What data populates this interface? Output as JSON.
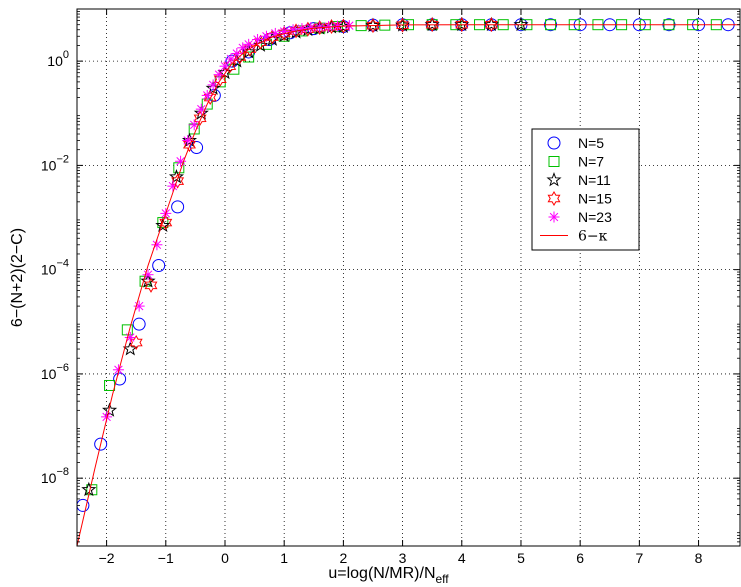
{
  "chart_data": {
    "type": "scatter",
    "title": "",
    "xlabel": "u=log(N/MR)/N",
    "xlabel_sub": "eff",
    "ylabel": "6−(N+2)(2−C)",
    "xlim": [
      -2.5,
      8.7
    ],
    "ylim": [
      5e-10,
      10.0
    ],
    "yscale": "log",
    "grid": true,
    "legend_position": "right",
    "x_ticks": [
      -2,
      -1,
      0,
      1,
      2,
      3,
      4,
      5,
      6,
      7,
      8
    ],
    "x_tick_labels": [
      "−2",
      "−1",
      "0",
      "1",
      "2",
      "3",
      "4",
      "5",
      "6",
      "7",
      "8"
    ],
    "y_ticks": [
      1e-08,
      1e-06,
      0.0001,
      0.01,
      1
    ],
    "y_tick_base": "10",
    "y_tick_exponents": [
      "−8",
      "−6",
      "−4",
      "−2",
      "0"
    ],
    "series": [
      {
        "name": "N=5",
        "marker": "circle",
        "color": "#0000ff",
        "x": [
          -2.4,
          -2.1,
          -1.78,
          -1.45,
          -1.12,
          -0.8,
          -0.48,
          -0.18,
          0.12,
          0.4,
          0.75,
          1.1,
          1.5,
          2.0,
          2.5,
          3.0,
          3.5,
          4.0,
          4.5,
          5.0,
          5.5,
          6.0,
          6.5,
          7.0,
          7.5,
          8.0,
          8.5
        ],
        "y": [
          3e-09,
          4.5e-08,
          8e-07,
          9e-06,
          0.00012,
          0.0016,
          0.022,
          0.22,
          1.0,
          1.5,
          2.6,
          3.5,
          4.2,
          4.6,
          4.9,
          5.0,
          5.0,
          5.0,
          5.0,
          5.0,
          5.0,
          5.0,
          5.0,
          5.0,
          5.0,
          5.0,
          5.0
        ]
      },
      {
        "name": "N=7",
        "marker": "square",
        "color": "#00c000",
        "x": [
          -2.25,
          -1.95,
          -1.65,
          -1.35,
          -1.05,
          -0.78,
          -0.52,
          -0.3,
          -0.08,
          0.15,
          0.4,
          0.7,
          1.0,
          1.3,
          1.6,
          1.9,
          2.3,
          2.7,
          3.1,
          3.5,
          3.9,
          4.3,
          4.7,
          5.1,
          5.5,
          5.9,
          6.3,
          6.7,
          7.1,
          7.5,
          7.9,
          8.3
        ],
        "y": [
          6e-09,
          6e-07,
          7e-06,
          6e-05,
          0.0008,
          0.009,
          0.05,
          0.15,
          0.4,
          0.7,
          1.2,
          2.1,
          3.0,
          3.8,
          4.3,
          4.6,
          4.8,
          4.9,
          5.0,
          5.0,
          5.0,
          5.0,
          5.0,
          5.0,
          5.0,
          5.0,
          5.0,
          5.0,
          5.0,
          5.0,
          5.0,
          5.0
        ]
      },
      {
        "name": "N=11",
        "marker": "star5",
        "color": "#000000",
        "x": [
          -2.3,
          -1.95,
          -1.6,
          -1.3,
          -1.05,
          -0.82,
          -0.6,
          -0.4,
          -0.2,
          0.0,
          0.2,
          0.4,
          0.6,
          0.8,
          1.0,
          1.2,
          1.4,
          1.6,
          1.8,
          2.0,
          2.5,
          3.0,
          3.5,
          4.0,
          4.5,
          5.0
        ],
        "y": [
          6e-09,
          2e-07,
          3e-06,
          6e-05,
          0.0007,
          0.006,
          0.03,
          0.1,
          0.3,
          0.6,
          1.0,
          1.5,
          2.0,
          2.6,
          3.1,
          3.6,
          4.0,
          4.3,
          4.5,
          4.6,
          4.8,
          4.9,
          5.0,
          5.0,
          5.0,
          5.0
        ]
      },
      {
        "name": "N=15",
        "marker": "hexagram",
        "color": "#ff0000",
        "x": [
          -1.5,
          -1.25,
          -1.0,
          -0.8,
          -0.6,
          -0.42,
          -0.25,
          -0.08,
          0.08,
          0.25,
          0.42,
          0.6,
          0.8,
          1.0,
          1.2,
          1.4,
          1.6,
          1.8,
          2.0,
          2.5,
          3.0,
          3.5,
          4.0,
          4.5
        ],
        "y": [
          4e-06,
          5e-05,
          0.0008,
          0.005,
          0.025,
          0.08,
          0.2,
          0.45,
          0.8,
          1.2,
          1.7,
          2.3,
          2.9,
          3.4,
          3.8,
          4.1,
          4.4,
          4.6,
          4.7,
          4.8,
          4.9,
          5.0,
          5.0,
          5.0
        ]
      },
      {
        "name": "N=23",
        "marker": "asterisk",
        "color": "#ff00ff",
        "x": [
          -2.0,
          -1.8,
          -1.6,
          -1.45,
          -1.3,
          -1.15,
          -1.0,
          -0.88,
          -0.75,
          -0.63,
          -0.52,
          -0.4,
          -0.3,
          -0.2,
          -0.1,
          0.0,
          0.1,
          0.2,
          0.3,
          0.4,
          0.55,
          0.7,
          0.85,
          1.0,
          1.15,
          1.3,
          1.45,
          1.6,
          1.75,
          1.9,
          2.1
        ],
        "y": [
          1.5e-07,
          1.2e-06,
          5e-06,
          2e-05,
          8e-05,
          0.0003,
          0.0012,
          0.004,
          0.012,
          0.03,
          0.06,
          0.12,
          0.22,
          0.35,
          0.55,
          0.8,
          1.1,
          1.4,
          1.8,
          2.1,
          2.6,
          3.0,
          3.4,
          3.7,
          4.0,
          4.2,
          4.4,
          4.5,
          4.6,
          4.7,
          4.8
        ]
      },
      {
        "name": "6−κ",
        "marker": "line",
        "color": "#ff0000",
        "x": [
          -2.5,
          -2.2,
          -1.9,
          -1.6,
          -1.3,
          -1.0,
          -0.7,
          -0.5,
          -0.3,
          -0.1,
          0.1,
          0.3,
          0.5,
          0.8,
          1.1,
          1.5,
          2.0,
          3.0,
          4.0,
          6.0,
          8.7
        ],
        "y": [
          5e-10,
          1.5e-08,
          4e-07,
          8e-06,
          0.00012,
          0.0012,
          0.012,
          0.045,
          0.15,
          0.4,
          0.85,
          1.4,
          2.0,
          2.9,
          3.6,
          4.3,
          4.7,
          4.95,
          5.0,
          5.0,
          5.0
        ]
      }
    ]
  }
}
